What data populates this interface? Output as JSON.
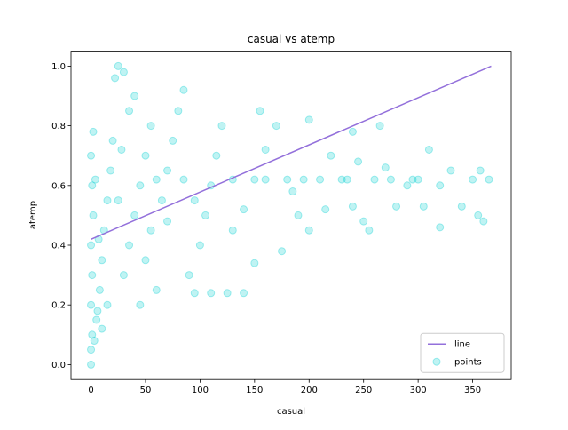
{
  "chart_data": {
    "type": "scatter",
    "title": "casual vs atemp",
    "xlabel": "casual",
    "ylabel": "atemp",
    "xlim": [
      -18.35,
      385.35
    ],
    "ylim": [
      -0.05,
      1.05
    ],
    "xticks": [
      0,
      50,
      100,
      150,
      200,
      250,
      300,
      350
    ],
    "yticks": [
      {
        "value": 0,
        "label": "0.0"
      },
      0.2,
      0.4,
      0.6,
      0.8,
      {
        "value": 1,
        "label": "1.0"
      }
    ],
    "legend": "lower right",
    "series": [
      {
        "name": "line",
        "type": "line",
        "color": "#9370db",
        "x": [
          0,
          367
        ],
        "y": [
          0.42,
          1.0
        ]
      },
      {
        "name": "points",
        "type": "scatter",
        "color": "#00ced1",
        "x": [
          0,
          0,
          1,
          0,
          1,
          0,
          2,
          1,
          0,
          2,
          5,
          8,
          10,
          12,
          15,
          18,
          20,
          10,
          15,
          22,
          25,
          30,
          30,
          35,
          40,
          45,
          50,
          55,
          35,
          40,
          60,
          50,
          55,
          65,
          70,
          75,
          80,
          85,
          90,
          100,
          105,
          110,
          115,
          120,
          95,
          110,
          125,
          140,
          130,
          140,
          150,
          160,
          170,
          155,
          180,
          190,
          200,
          175,
          150,
          200,
          210,
          220,
          230,
          240,
          250,
          260,
          270,
          280,
          290,
          300,
          265,
          240,
          255,
          310,
          320,
          330,
          340,
          350,
          357,
          360,
          365,
          355,
          320,
          3,
          6,
          4,
          7,
          25,
          28,
          45,
          60,
          70,
          85,
          95,
          130,
          160,
          185,
          195,
          215,
          235,
          245,
          275,
          295,
          305
        ],
        "y": [
          0.0,
          0.05,
          0.1,
          0.2,
          0.3,
          0.4,
          0.5,
          0.6,
          0.7,
          0.78,
          0.15,
          0.25,
          0.35,
          0.45,
          0.55,
          0.65,
          0.75,
          0.12,
          0.2,
          0.96,
          1.0,
          0.98,
          0.3,
          0.4,
          0.5,
          0.6,
          0.7,
          0.8,
          0.85,
          0.9,
          0.25,
          0.35,
          0.45,
          0.55,
          0.65,
          0.75,
          0.85,
          0.92,
          0.3,
          0.4,
          0.5,
          0.6,
          0.7,
          0.8,
          0.24,
          0.24,
          0.24,
          0.24,
          0.45,
          0.52,
          0.62,
          0.72,
          0.8,
          0.85,
          0.62,
          0.5,
          0.45,
          0.38,
          0.34,
          0.82,
          0.62,
          0.7,
          0.62,
          0.53,
          0.48,
          0.62,
          0.66,
          0.53,
          0.6,
          0.62,
          0.8,
          0.78,
          0.45,
          0.72,
          0.46,
          0.65,
          0.53,
          0.62,
          0.65,
          0.48,
          0.62,
          0.5,
          0.6,
          0.08,
          0.18,
          0.62,
          0.42,
          0.55,
          0.72,
          0.2,
          0.62,
          0.48,
          0.62,
          0.55,
          0.62,
          0.62,
          0.58,
          0.62,
          0.52,
          0.62,
          0.68,
          0.62,
          0.62,
          0.53
        ]
      }
    ]
  }
}
